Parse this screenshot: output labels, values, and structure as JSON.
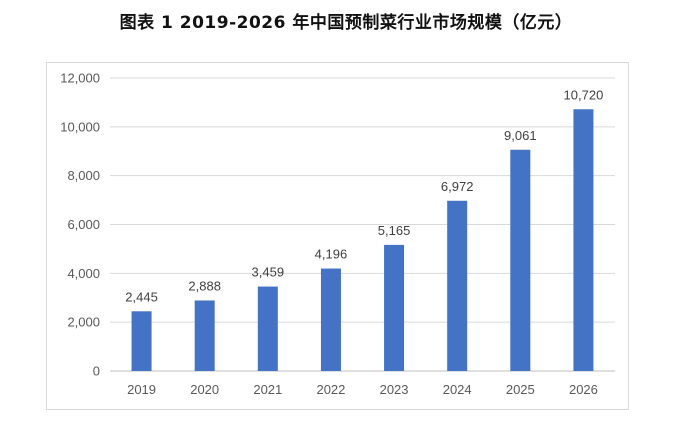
{
  "title": "图表 1 2019-2026 年中国预制菜行业市场规模（亿元）",
  "chart_data": {
    "type": "bar",
    "title": "图表 1 2019-2026 年中国预制菜行业市场规模（亿元）",
    "categories": [
      "2019",
      "2020",
      "2021",
      "2022",
      "2023",
      "2024",
      "2025",
      "2026"
    ],
    "values": [
      2445,
      2888,
      3459,
      4196,
      5165,
      6972,
      9061,
      10720
    ],
    "data_labels": [
      "2,445",
      "2,888",
      "3,459",
      "4,196",
      "5,165",
      "6,972",
      "9,061",
      "10,720"
    ],
    "ylim": [
      0,
      12000
    ],
    "yticks": [
      0,
      2000,
      4000,
      6000,
      8000,
      10000,
      12000
    ],
    "ytick_labels": [
      "0",
      "2,000",
      "4,000",
      "6,000",
      "8,000",
      "10,000",
      "12,000"
    ],
    "grid": true,
    "legend": "none",
    "bar_color": "#4472c4"
  }
}
